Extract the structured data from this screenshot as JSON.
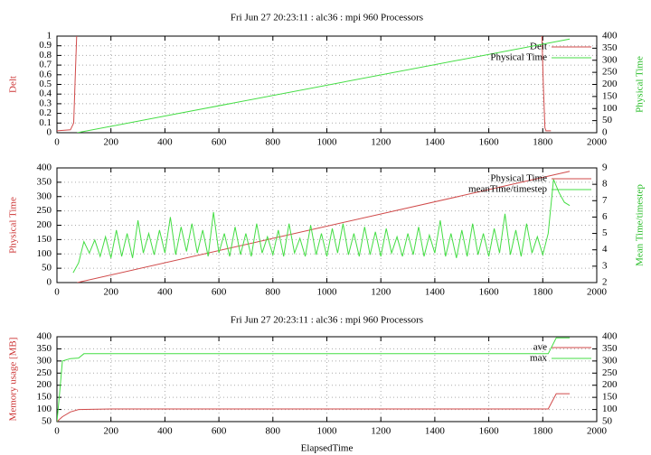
{
  "chart_data": [
    {
      "type": "line",
      "title": "Fri Jun 27 20:23:11 : alc36 : mpi 960 Processors",
      "y_label": "Delt",
      "y2_label": "Physical Time",
      "xlim": [
        0,
        2000
      ],
      "xticks": [
        0,
        200,
        400,
        600,
        800,
        1000,
        1200,
        1400,
        1600,
        1800,
        2000
      ],
      "ylim": [
        0,
        1
      ],
      "yticks": [
        0,
        0.1,
        0.2,
        0.3,
        0.4,
        0.5,
        0.6,
        0.7,
        0.8,
        0.9,
        1
      ],
      "y2lim": [
        0,
        400
      ],
      "y2ticks": [
        0,
        50,
        100,
        150,
        200,
        250,
        300,
        350,
        400
      ],
      "grid": true,
      "legend": "top-right",
      "series": [
        {
          "name": "Delt",
          "color": "#d04a4a",
          "x": [
            0,
            50,
            62,
            68,
            73,
            null,
            1797,
            1802,
            1808,
            1812,
            1830
          ],
          "values": [
            0.02,
            0.03,
            0.1,
            0.6,
            1,
            null,
            1,
            0.5,
            0.05,
            0.02,
            0.02
          ]
        },
        {
          "name": "Physical Time",
          "color": "#44dd44",
          "axis": "y2",
          "x": [
            75,
            1900
          ],
          "values": [
            0,
            388
          ]
        }
      ]
    },
    {
      "type": "line",
      "y_label": "Physical Time",
      "y2_label": "Mean Time/timestep",
      "xlim": [
        0,
        2000
      ],
      "xticks": [
        0,
        200,
        400,
        600,
        800,
        1000,
        1200,
        1400,
        1600,
        1800,
        2000
      ],
      "ylim": [
        0,
        400
      ],
      "yticks": [
        0,
        50,
        100,
        150,
        200,
        250,
        300,
        350,
        400
      ],
      "y2lim": [
        2,
        9
      ],
      "y2ticks": [
        2,
        3,
        4,
        5,
        6,
        7,
        8,
        9
      ],
      "grid": true,
      "legend": "top-right",
      "series": [
        {
          "name": "Physical Time",
          "color": "#d04a4a",
          "x": [
            75,
            1900
          ],
          "values": [
            0,
            388
          ]
        },
        {
          "name": "meanTime/timestep",
          "color": "#44dd44",
          "axis": "y2",
          "x": [
            60,
            80,
            100,
            120,
            140,
            160,
            180,
            200,
            220,
            240,
            260,
            280,
            300,
            320,
            340,
            360,
            380,
            400,
            420,
            440,
            460,
            480,
            500,
            520,
            540,
            560,
            580,
            600,
            620,
            640,
            660,
            680,
            700,
            720,
            740,
            760,
            780,
            800,
            820,
            840,
            860,
            880,
            900,
            920,
            940,
            960,
            980,
            1000,
            1020,
            1040,
            1060,
            1080,
            1100,
            1120,
            1140,
            1160,
            1180,
            1200,
            1220,
            1240,
            1260,
            1280,
            1300,
            1320,
            1340,
            1360,
            1380,
            1400,
            1420,
            1440,
            1460,
            1480,
            1500,
            1520,
            1540,
            1560,
            1580,
            1600,
            1620,
            1640,
            1660,
            1680,
            1700,
            1720,
            1740,
            1760,
            1780,
            1800,
            1820,
            1840,
            1860,
            1880,
            1900
          ],
          "values": [
            2.6,
            3.2,
            4.5,
            3.8,
            4.6,
            3.6,
            4.8,
            3.5,
            5.2,
            3.6,
            5.0,
            3.5,
            5.8,
            3.8,
            5.0,
            3.7,
            5.2,
            3.8,
            6.0,
            3.7,
            5.4,
            3.9,
            5.6,
            3.8,
            5.2,
            3.6,
            6.3,
            3.8,
            5.0,
            3.6,
            5.4,
            3.7,
            5.0,
            3.6,
            5.6,
            3.8,
            4.8,
            3.7,
            5.2,
            3.6,
            5.6,
            3.8,
            4.7,
            3.6,
            5.5,
            3.7,
            5.0,
            3.6,
            5.3,
            3.8,
            5.6,
            3.7,
            5.0,
            3.6,
            5.4,
            3.7,
            5.1,
            3.6,
            5.3,
            3.8,
            4.8,
            3.6,
            5.0,
            3.7,
            5.4,
            3.6,
            4.9,
            3.8,
            5.8,
            3.6,
            5.0,
            3.5,
            5.2,
            3.6,
            5.6,
            3.7,
            5.0,
            3.6,
            5.3,
            3.8,
            6.2,
            3.7,
            5.2,
            3.6,
            5.6,
            3.8,
            4.8,
            3.7,
            5.0,
            8.3,
            7.5,
            6.9,
            6.7
          ]
        }
      ]
    },
    {
      "type": "line",
      "title": "Fri Jun 27 20:23:11 : alc36 : mpi 960 Processors",
      "y_label": "Memory usage [MB]",
      "x_label": "ElapsedTime",
      "xlim": [
        0,
        2000
      ],
      "xticks": [
        0,
        200,
        400,
        600,
        800,
        1000,
        1200,
        1400,
        1600,
        1800,
        2000
      ],
      "ylim": [
        50,
        400
      ],
      "yticks": [
        50,
        100,
        150,
        200,
        250,
        300,
        350,
        400
      ],
      "y2lim": [
        50,
        400
      ],
      "y2ticks": [
        50,
        100,
        150,
        200,
        250,
        300,
        350,
        400
      ],
      "grid": true,
      "legend": "top-right",
      "series": [
        {
          "name": "ave",
          "color": "#d04a4a",
          "x": [
            0,
            20,
            50,
            80,
            200,
            1820,
            1850,
            1900
          ],
          "values": [
            50,
            70,
            90,
            100,
            102,
            102,
            165,
            165
          ]
        },
        {
          "name": "max",
          "color": "#44dd44",
          "x": [
            0,
            10,
            20,
            50,
            80,
            100,
            1820,
            1850,
            1900
          ],
          "values": [
            50,
            170,
            300,
            310,
            312,
            330,
            330,
            395,
            395
          ]
        }
      ]
    }
  ]
}
